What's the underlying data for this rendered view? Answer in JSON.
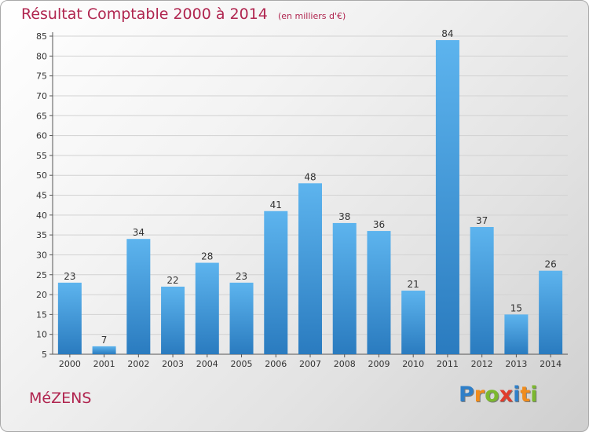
{
  "chart_data": {
    "type": "bar",
    "title": "Résultat Comptable 2000 à 2014",
    "subtitle": "(en milliers d'€)",
    "categories": [
      "2000",
      "2001",
      "2002",
      "2003",
      "2004",
      "2005",
      "2006",
      "2007",
      "2008",
      "2009",
      "2010",
      "2011",
      "2012",
      "2013",
      "2014"
    ],
    "values": [
      23,
      7,
      34,
      22,
      28,
      23,
      41,
      48,
      38,
      36,
      21,
      84,
      37,
      15,
      26
    ],
    "ylim": [
      5,
      85
    ],
    "yticks": [
      5,
      10,
      15,
      20,
      25,
      30,
      35,
      40,
      45,
      50,
      55,
      60,
      65,
      70,
      75,
      80,
      85
    ],
    "grid": true,
    "bar_color": "#3d95d8",
    "title_color": "#b0254f"
  },
  "footer": {
    "commune": "MéZENS",
    "logo": {
      "letters": [
        "P",
        "r",
        "o",
        "x",
        "i",
        "t",
        "i"
      ],
      "colors": [
        "#2f7fc8",
        "#f08c1c",
        "#7cb82f",
        "#e03c2c",
        "#2f7fc8",
        "#f08c1c",
        "#7cb82f"
      ]
    }
  }
}
